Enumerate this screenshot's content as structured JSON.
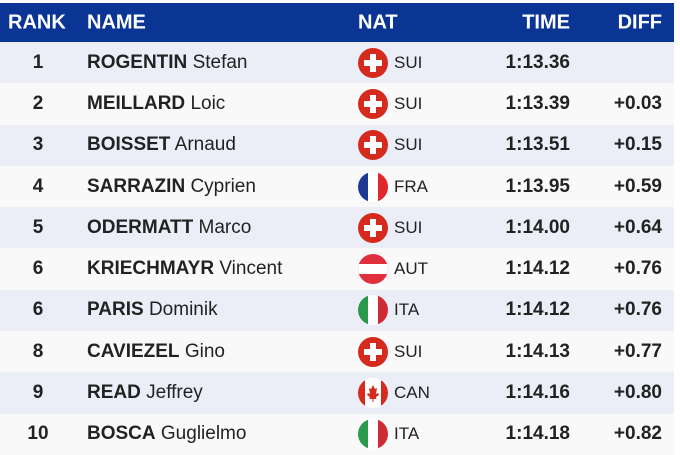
{
  "header": {
    "rank": "RANK",
    "name": "NAME",
    "nat": "NAT",
    "time": "TIME",
    "diff": "DIFF"
  },
  "colors": {
    "header_bg": "#0a3595",
    "row_alt": "#ebeef7"
  },
  "rows": [
    {
      "rank": "1",
      "last": "ROGENTIN",
      "first": "Stefan",
      "nat": "SUI",
      "flag": "switzerland-flag-icon",
      "time": "1:13.36",
      "diff": ""
    },
    {
      "rank": "2",
      "last": "MEILLARD",
      "first": "Loic",
      "nat": "SUI",
      "flag": "switzerland-flag-icon",
      "time": "1:13.39",
      "diff": "+0.03"
    },
    {
      "rank": "3",
      "last": "BOISSET",
      "first": "Arnaud",
      "nat": "SUI",
      "flag": "switzerland-flag-icon",
      "time": "1:13.51",
      "diff": "+0.15"
    },
    {
      "rank": "4",
      "last": "SARRAZIN",
      "first": "Cyprien",
      "nat": "FRA",
      "flag": "france-flag-icon",
      "time": "1:13.95",
      "diff": "+0.59"
    },
    {
      "rank": "5",
      "last": "ODERMATT",
      "first": "Marco",
      "nat": "SUI",
      "flag": "switzerland-flag-icon",
      "time": "1:14.00",
      "diff": "+0.64"
    },
    {
      "rank": "6",
      "last": "KRIECHMAYR",
      "first": "Vincent",
      "nat": "AUT",
      "flag": "austria-flag-icon",
      "time": "1:14.12",
      "diff": "+0.76"
    },
    {
      "rank": "6",
      "last": "PARIS",
      "first": "Dominik",
      "nat": "ITA",
      "flag": "italy-flag-icon",
      "time": "1:14.12",
      "diff": "+0.76"
    },
    {
      "rank": "8",
      "last": "CAVIEZEL",
      "first": "Gino",
      "nat": "SUI",
      "flag": "switzerland-flag-icon",
      "time": "1:14.13",
      "diff": "+0.77"
    },
    {
      "rank": "9",
      "last": "READ",
      "first": "Jeffrey",
      "nat": "CAN",
      "flag": "canada-flag-icon",
      "time": "1:14.16",
      "diff": "+0.80"
    },
    {
      "rank": "10",
      "last": "BOSCA",
      "first": "Guglielmo",
      "nat": "ITA",
      "flag": "italy-flag-icon",
      "time": "1:14.18",
      "diff": "+0.82"
    }
  ]
}
